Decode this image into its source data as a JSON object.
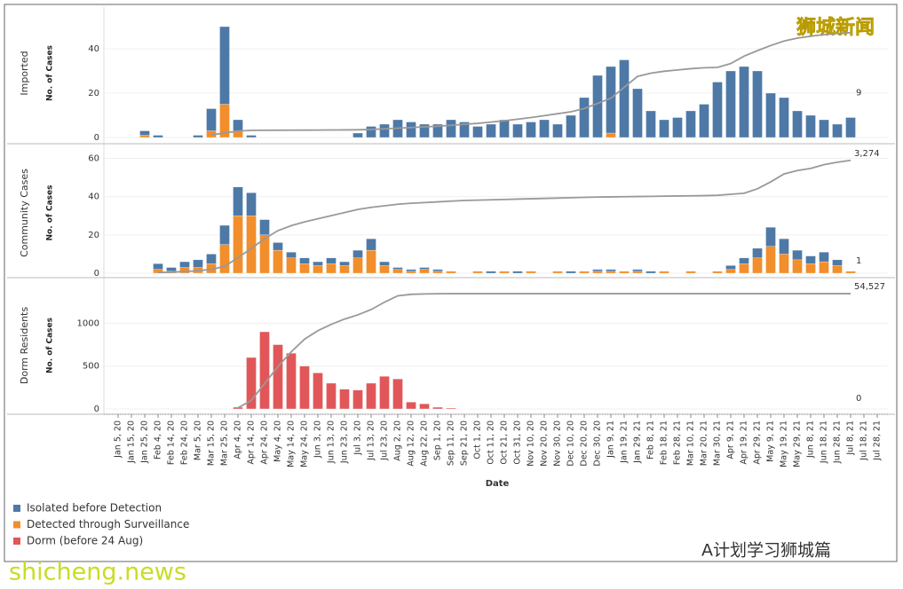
{
  "chart_data": {
    "type": "stacked-bar-with-cumulative",
    "x_label": "Date",
    "categories": [
      "Jan 5, 20",
      "Jan 15, 20",
      "Jan 25, 20",
      "Feb 4, 20",
      "Feb 14, 20",
      "Feb 24, 20",
      "Mar 5, 20",
      "Mar 15, 20",
      "Mar 25, 20",
      "Apr 4, 20",
      "Apr 14, 20",
      "Apr 24, 20",
      "May 4, 20",
      "May 14, 20",
      "May 24, 20",
      "Jun 3, 20",
      "Jun 13, 20",
      "Jun 23, 20",
      "Jul 3, 20",
      "Jul 13, 20",
      "Jul 23, 20",
      "Aug 2, 20",
      "Aug 12, 20",
      "Aug 22, 20",
      "Sep 1, 20",
      "Sep 11, 20",
      "Sep 21, 20",
      "Oct 1, 20",
      "Oct 11, 20",
      "Oct 21, 20",
      "Oct 31, 20",
      "Nov 10, 20",
      "Nov 20, 20",
      "Nov 30, 20",
      "Dec 10, 20",
      "Dec 20, 20",
      "Dec 30, 20",
      "Jan 9, 21",
      "Jan 19, 21",
      "Jan 29, 21",
      "Feb 8, 21",
      "Feb 18, 21",
      "Feb 28, 21",
      "Mar 10, 21",
      "Mar 20, 21",
      "Mar 30, 21",
      "Apr 9, 21",
      "Apr 19, 21",
      "Apr 29, 21",
      "May 9, 21",
      "May 19, 21",
      "May 29, 21",
      "Jun 8, 21",
      "Jun 18, 21",
      "Jun 28, 21",
      "Jul 8, 21",
      "Jul 18, 21",
      "Jul 28, 21"
    ],
    "legend": [
      {
        "name": "Isolated before Detection",
        "color": "#4e79a7"
      },
      {
        "name": "Detected through Surveillance",
        "color": "#f28e2b"
      },
      {
        "name": "Dorm (before 24 Aug)",
        "color": "#e15759"
      }
    ],
    "cumulative_color": "#999999",
    "panels": [
      {
        "title": "Imported",
        "y_label": "No. of Cases",
        "ylim": [
          0,
          58
        ],
        "yticks": [
          0,
          20,
          40
        ],
        "y2lim": [
          0,
          2000
        ],
        "last_day_total": 9,
        "series": [
          {
            "legend": 1,
            "values": [
              0,
              0,
              1,
              0,
              0,
              0,
              0,
              3,
              15,
              3,
              0,
              0,
              0,
              0,
              0,
              0,
              0,
              0,
              0,
              0,
              0,
              0,
              0,
              0,
              0,
              0,
              0,
              0,
              0,
              0,
              0,
              0,
              0,
              0,
              0,
              0,
              0,
              2,
              0,
              0,
              0,
              0,
              0,
              0,
              0,
              0,
              0,
              0,
              0,
              0,
              0,
              0,
              0,
              0,
              0,
              0,
              null,
              null
            ]
          },
          {
            "legend": 0,
            "values": [
              0,
              0,
              2,
              1,
              0,
              0,
              1,
              10,
              35,
              5,
              1,
              0,
              0,
              0,
              0,
              0,
              0,
              0,
              2,
              5,
              6,
              8,
              7,
              6,
              6,
              8,
              7,
              5,
              6,
              8,
              6,
              7,
              8,
              6,
              10,
              18,
              28,
              30,
              35,
              22,
              12,
              8,
              9,
              12,
              15,
              25,
              30,
              32,
              30,
              20,
              18,
              12,
              10,
              8,
              6,
              9,
              null,
              null
            ]
          }
        ],
        "cumulative": {
          "values": [
            null,
            null,
            null,
            null,
            null,
            null,
            null,
            40,
            70,
            100,
            110,
            112,
            113,
            114,
            115,
            116,
            117,
            118,
            120,
            125,
            135,
            145,
            155,
            165,
            175,
            190,
            205,
            220,
            240,
            260,
            285,
            310,
            340,
            370,
            400,
            450,
            530,
            610,
            780,
            950,
            1000,
            1030,
            1050,
            1070,
            1085,
            1090,
            1150,
            1265,
            1350,
            1430,
            1500,
            1545,
            1575,
            1600,
            1615,
            1630,
            null,
            null
          ]
        }
      },
      {
        "title": "Community Cases",
        "y_label": "No. of Cases",
        "ylim": [
          0,
          63
        ],
        "yticks": [
          0,
          20,
          40,
          60
        ],
        "y2lim": [
          0,
          3500
        ],
        "last_day_total": 1,
        "series": [
          {
            "legend": 1,
            "values": [
              0,
              0,
              0,
              2,
              1,
              3,
              3,
              5,
              15,
              30,
              30,
              20,
              12,
              8,
              5,
              4,
              5,
              4,
              8,
              12,
              4,
              2,
              1,
              2,
              1,
              1,
              0,
              1,
              0,
              1,
              0,
              1,
              0,
              1,
              0,
              1,
              1,
              1,
              1,
              1,
              0,
              1,
              0,
              1,
              0,
              1,
              2,
              5,
              8,
              14,
              10,
              7,
              5,
              6,
              4,
              1,
              null,
              null
            ]
          },
          {
            "legend": 0,
            "values": [
              0,
              0,
              0,
              3,
              2,
              3,
              4,
              5,
              10,
              15,
              12,
              8,
              4,
              3,
              3,
              2,
              3,
              2,
              4,
              6,
              2,
              1,
              1,
              1,
              1,
              0,
              0,
              0,
              1,
              0,
              1,
              0,
              0,
              0,
              1,
              0,
              1,
              1,
              0,
              1,
              1,
              0,
              0,
              0,
              0,
              0,
              2,
              3,
              5,
              10,
              8,
              5,
              4,
              5,
              3,
              0,
              null,
              null
            ]
          }
        ],
        "cumulative": {
          "values": [
            null,
            null,
            null,
            20,
            30,
            50,
            70,
            110,
            200,
            450,
            720,
            1000,
            1235,
            1380,
            1490,
            1580,
            1670,
            1760,
            1850,
            1910,
            1955,
            2000,
            2030,
            2050,
            2070,
            2090,
            2110,
            2120,
            2130,
            2140,
            2150,
            2160,
            2170,
            2180,
            2190,
            2200,
            2210,
            2215,
            2220,
            2225,
            2230,
            2235,
            2240,
            2245,
            2250,
            2260,
            2290,
            2320,
            2450,
            2650,
            2880,
            2980,
            3040,
            3150,
            3220,
            3274,
            null,
            null
          ],
          "end_label": "3,274"
        }
      },
      {
        "title": "Dorm Residents",
        "y_label": "No. of Cases",
        "ylim": [
          0,
          1480
        ],
        "yticks": [
          0,
          500,
          1000
        ],
        "y2lim": [
          0,
          60000
        ],
        "last_day_total": 0,
        "series": [
          {
            "legend": 2,
            "values": [
              0,
              0,
              0,
              0,
              0,
              0,
              0,
              0,
              0,
              20,
              600,
              900,
              750,
              650,
              500,
              420,
              300,
              230,
              220,
              300,
              380,
              350,
              80,
              60,
              20,
              10,
              2,
              0,
              0,
              0,
              0,
              0,
              0,
              0,
              0,
              0,
              0,
              0,
              0,
              0,
              0,
              0,
              0,
              0,
              0,
              0,
              0,
              0,
              0,
              0,
              0,
              0,
              0,
              0,
              0,
              0,
              null,
              null
            ]
          }
        ],
        "cumulative": {
          "values": [
            null,
            null,
            null,
            null,
            null,
            null,
            null,
            null,
            null,
            500,
            4000,
            12000,
            20000,
            27000,
            33000,
            37000,
            40000,
            42500,
            44500,
            47000,
            50500,
            53500,
            54200,
            54400,
            54480,
            54510,
            54520,
            54527,
            54527,
            54527,
            54527,
            54527,
            54527,
            54527,
            54527,
            54527,
            54527,
            54527,
            54527,
            54527,
            54527,
            54527,
            54527,
            54527,
            54527,
            54527,
            54527,
            54527,
            54527,
            54527,
            54527,
            54527,
            54527,
            54527,
            54527,
            54527,
            null,
            null
          ],
          "end_label": "54,527"
        }
      }
    ]
  },
  "watermarks": {
    "top": "狮城新闻",
    "site": "shicheng.news",
    "account": "A计划学习狮城篇"
  }
}
